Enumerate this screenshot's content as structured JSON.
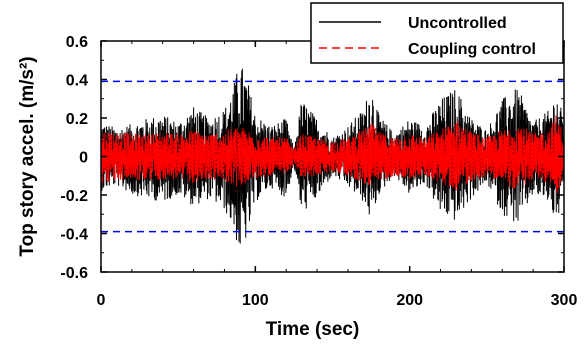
{
  "chart_data": {
    "type": "line",
    "xlabel": "Time (sec)",
    "ylabel": "Top story accel. (m/s²)",
    "xlim": [
      0,
      300
    ],
    "ylim": [
      -0.6,
      0.6
    ],
    "xticks": [
      0,
      100,
      200,
      300
    ],
    "yticks": [
      -0.6,
      -0.4,
      -0.2,
      0,
      0.2,
      0.4,
      0.6
    ],
    "ytick_labels": [
      "-0.6",
      "-0.4",
      "-0.2",
      "0",
      "0.2",
      "0.4",
      "0.6"
    ],
    "legend_position": "top-right",
    "grid": false,
    "colors": {
      "uncontrolled": "#000000",
      "coupling": "#ff0000",
      "threshold": "#0000ff"
    },
    "series": [
      {
        "name": "Uncontrolled",
        "style": "solid",
        "x": [
          0,
          10,
          20,
          30,
          40,
          50,
          60,
          70,
          80,
          85,
          90,
          95,
          100,
          110,
          120,
          125,
          130,
          140,
          150,
          160,
          170,
          175,
          180,
          190,
          200,
          210,
          220,
          230,
          240,
          250,
          260,
          270,
          280,
          290,
          295,
          300
        ],
        "y_max": [
          0.18,
          0.15,
          0.17,
          0.2,
          0.22,
          0.18,
          0.26,
          0.2,
          0.25,
          0.35,
          0.5,
          0.4,
          0.22,
          0.16,
          0.2,
          0.04,
          0.3,
          0.2,
          0.1,
          0.16,
          0.25,
          0.38,
          0.22,
          0.12,
          0.2,
          0.16,
          0.3,
          0.36,
          0.2,
          0.14,
          0.3,
          0.36,
          0.18,
          0.24,
          0.34,
          0.2
        ],
        "y_min": [
          -0.18,
          -0.15,
          -0.2,
          -0.22,
          -0.24,
          -0.2,
          -0.26,
          -0.22,
          -0.28,
          -0.36,
          -0.51,
          -0.42,
          -0.24,
          -0.16,
          -0.22,
          -0.05,
          -0.3,
          -0.22,
          -0.1,
          -0.16,
          -0.24,
          -0.34,
          -0.2,
          -0.1,
          -0.2,
          -0.14,
          -0.3,
          -0.34,
          -0.22,
          -0.14,
          -0.3,
          -0.36,
          -0.2,
          -0.24,
          -0.36,
          -0.2
        ]
      },
      {
        "name": "Coupling control",
        "style": "dashed",
        "x": [
          0,
          10,
          20,
          30,
          40,
          50,
          60,
          70,
          80,
          85,
          90,
          95,
          100,
          110,
          120,
          125,
          130,
          140,
          150,
          160,
          170,
          175,
          180,
          190,
          200,
          210,
          220,
          230,
          240,
          250,
          260,
          270,
          280,
          290,
          295,
          300
        ],
        "y_max": [
          0.14,
          0.13,
          0.12,
          0.12,
          0.13,
          0.12,
          0.14,
          0.12,
          0.13,
          0.15,
          0.16,
          0.14,
          0.12,
          0.1,
          0.1,
          0.04,
          0.12,
          0.1,
          0.08,
          0.1,
          0.14,
          0.18,
          0.13,
          0.1,
          0.12,
          0.1,
          0.14,
          0.2,
          0.13,
          0.1,
          0.14,
          0.18,
          0.12,
          0.14,
          0.22,
          0.12
        ],
        "y_min": [
          -0.14,
          -0.13,
          -0.12,
          -0.13,
          -0.12,
          -0.12,
          -0.14,
          -0.12,
          -0.13,
          -0.15,
          -0.16,
          -0.14,
          -0.12,
          -0.1,
          -0.1,
          -0.04,
          -0.12,
          -0.1,
          -0.08,
          -0.1,
          -0.14,
          -0.18,
          -0.13,
          -0.1,
          -0.12,
          -0.1,
          -0.14,
          -0.18,
          -0.13,
          -0.1,
          -0.14,
          -0.18,
          -0.12,
          -0.14,
          -0.2,
          -0.12
        ]
      }
    ],
    "reference_lines": [
      {
        "y": 0.39,
        "color": "#0000ff",
        "style": "dashed"
      },
      {
        "y": -0.39,
        "color": "#0000ff",
        "style": "dashed"
      }
    ]
  }
}
